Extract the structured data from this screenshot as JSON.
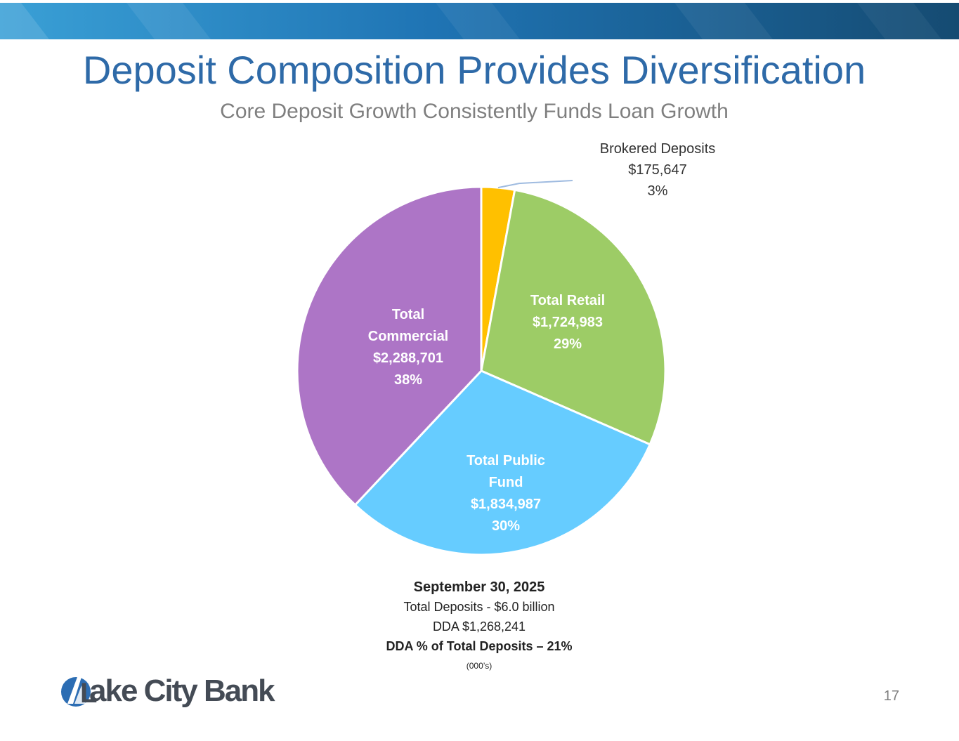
{
  "header": {
    "title": "Deposit Composition Provides Diversification",
    "subtitle": "Core Deposit Growth Consistently Funds Loan Growth"
  },
  "colors": {
    "banner_start": "#3aa0d6",
    "banner_end": "#154b72",
    "title": "#2e6aa8",
    "logo_blue": "#2c6db3"
  },
  "chart_data": {
    "type": "pie",
    "title": "",
    "slices": [
      {
        "name": "Brokered Deposits",
        "value": 175647,
        "value_label": "$175,647",
        "percent": "3%",
        "color": "#ffc000",
        "label_lines": [
          "Brokered Deposits",
          "$175,647",
          "3%"
        ]
      },
      {
        "name": "Total Retail",
        "value": 1724983,
        "value_label": "$1,724,983",
        "percent": "29%",
        "color": "#9dcc66",
        "label_lines": [
          "Total Retail",
          "$1,724,983",
          "29%"
        ]
      },
      {
        "name": "Total Public Fund",
        "value": 1834987,
        "value_label": "$1,834,987",
        "percent": "30%",
        "color": "#66ccff",
        "label_lines": [
          "Total Public",
          "Fund",
          "$1,834,987",
          "30%"
        ]
      },
      {
        "name": "Total Commercial",
        "value": 2288701,
        "value_label": "$2,288,701",
        "percent": "38%",
        "color": "#ad75c6",
        "label_lines": [
          "Total",
          "Commercial",
          "$2,288,701",
          "38%"
        ]
      }
    ]
  },
  "footer": {
    "date": "September 30, 2025",
    "total_deposits": "Total Deposits - $6.0 billion",
    "dda": "DDA $1,268,241",
    "dda_pct": "DDA % of Total Deposits – 21%",
    "units": "(000’s)"
  },
  "logo": {
    "text": "ake City Bank",
    "initial": "L"
  },
  "page_number": "17"
}
